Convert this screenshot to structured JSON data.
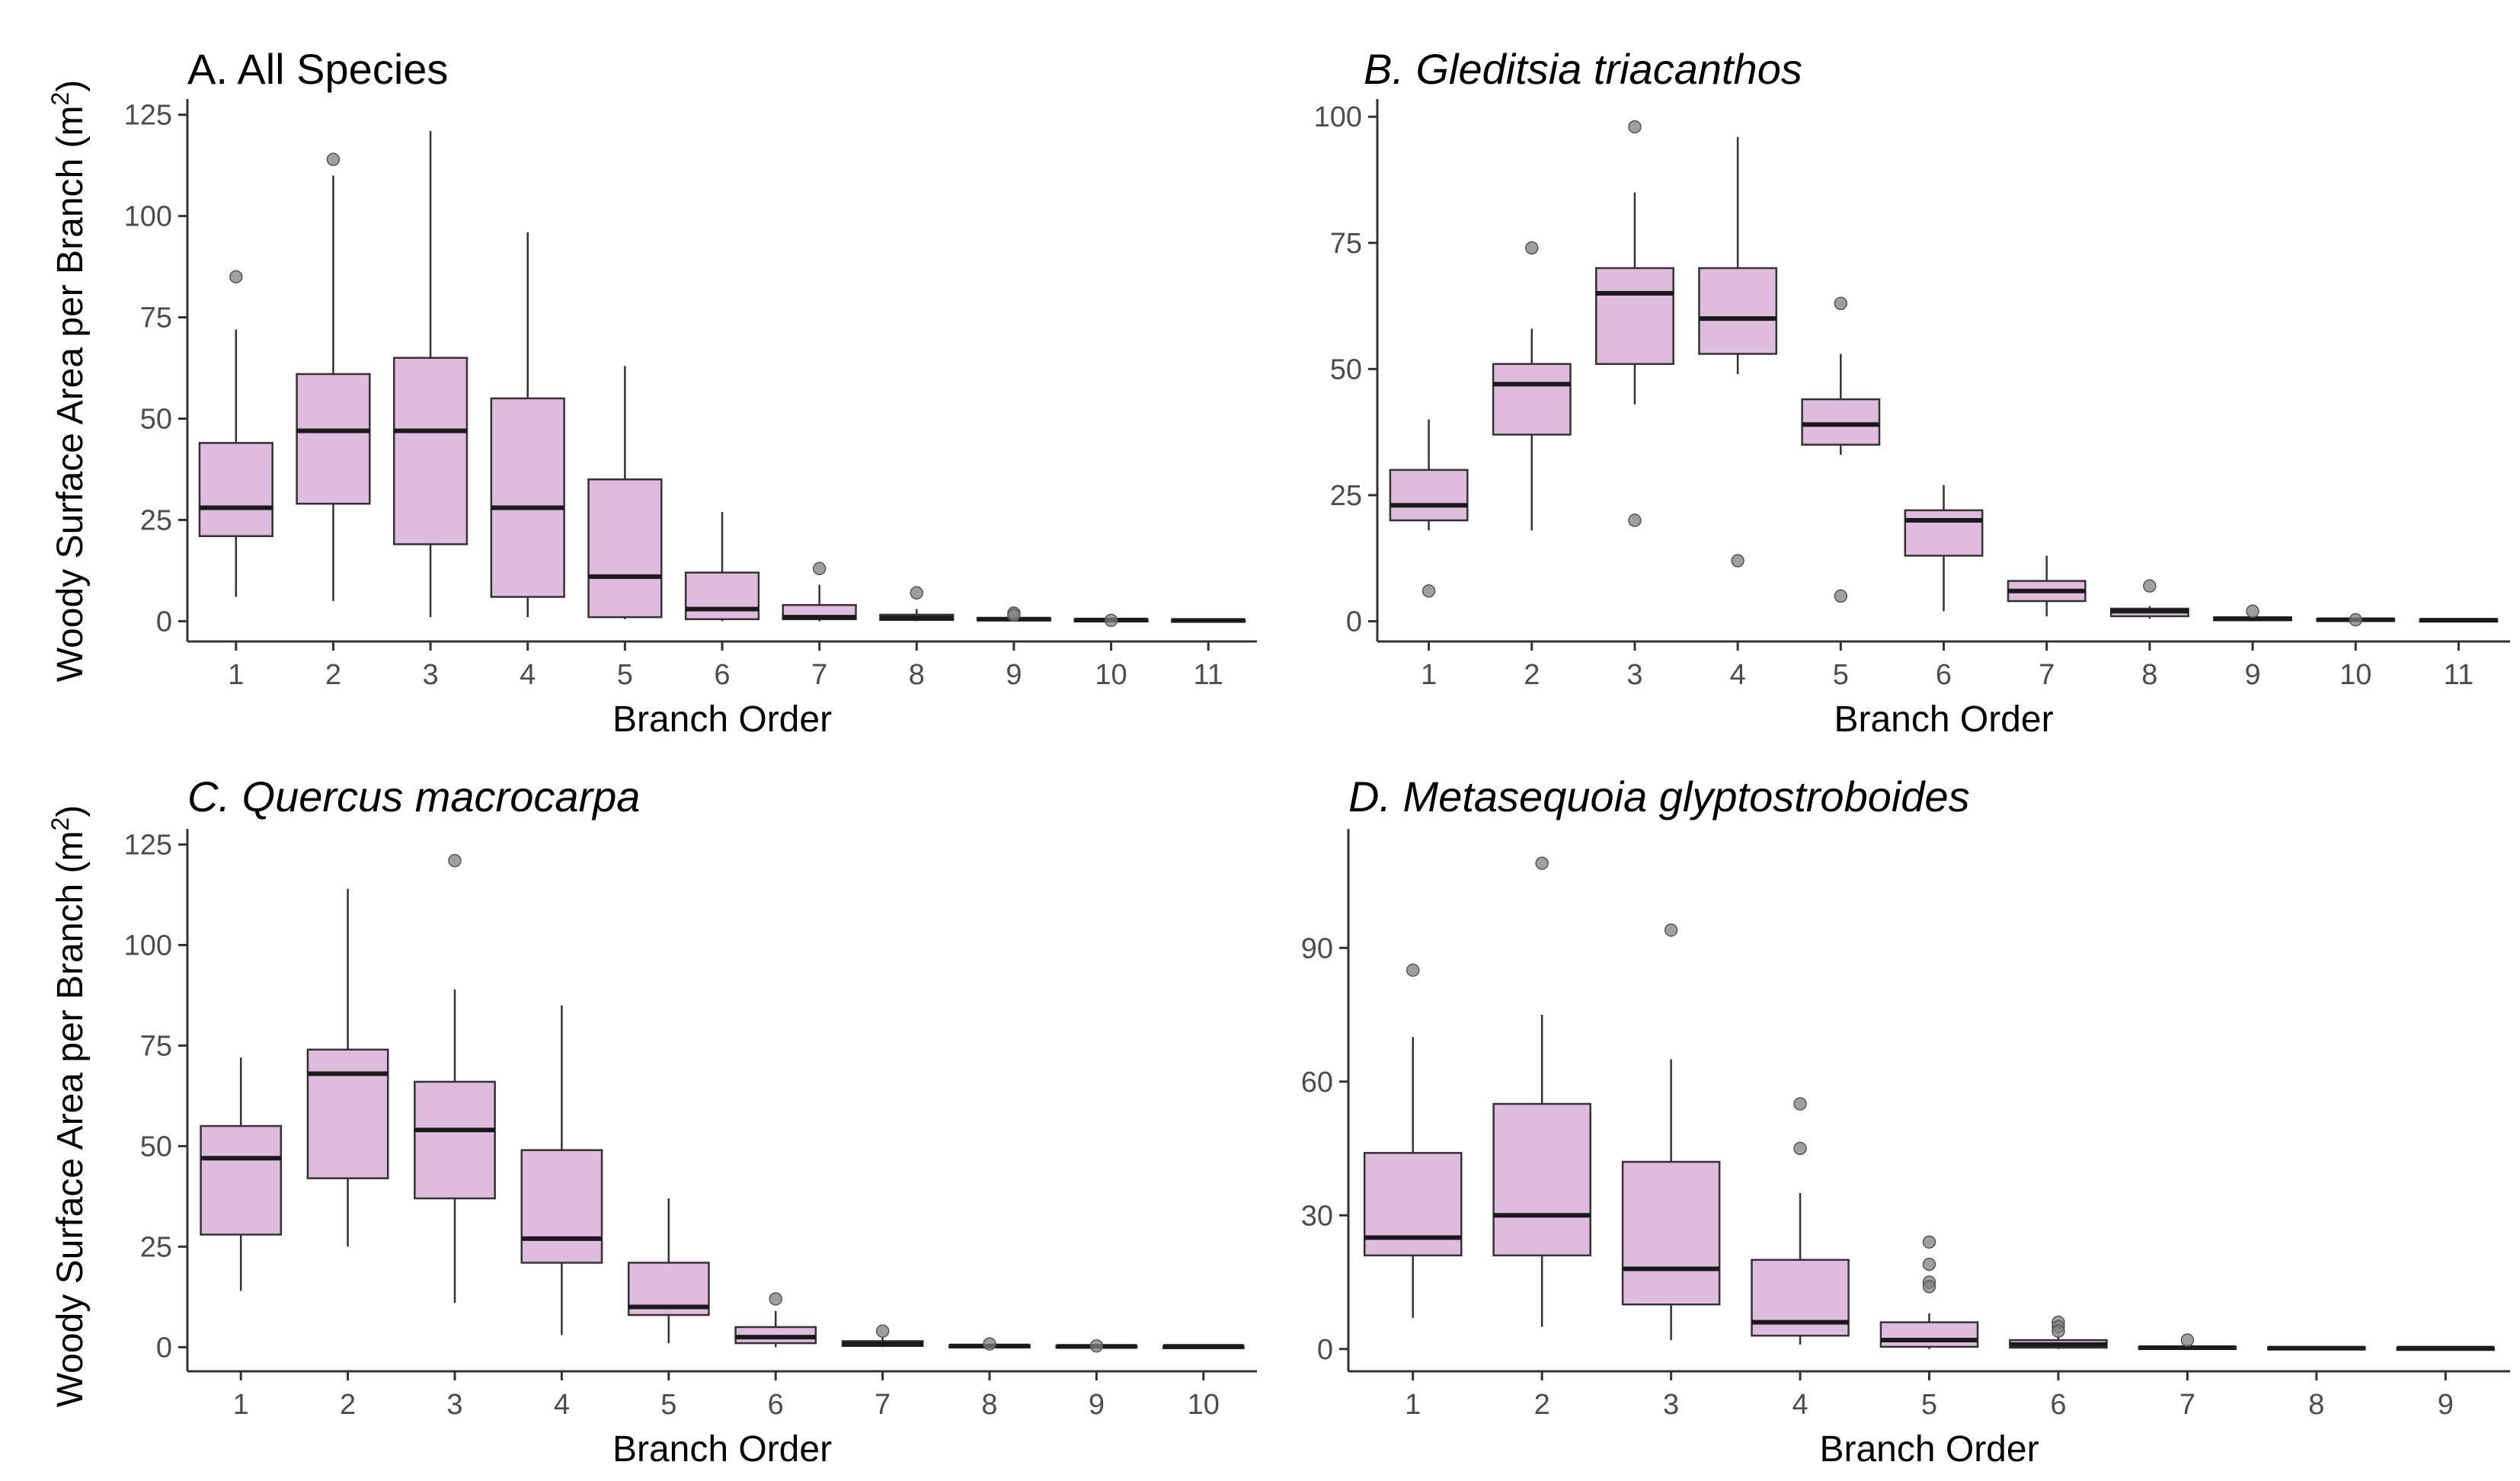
{
  "figure": {
    "ylabel_left": "Woody Surface Area per Branch (m",
    "ylabel_sup": "2",
    "ylabel_close": ")"
  },
  "colors": {
    "box_fill": "#dfbcdd",
    "box_stroke": "#333333",
    "median": "#1a1a1a",
    "outlier": "#7f7f7f",
    "axis": "#333333",
    "tick_text": "#4d4d4d"
  },
  "chart_data": [
    {
      "type": "boxplot",
      "panel": "A",
      "title": "A. All Species",
      "italic_title": false,
      "xlabel": "Branch Order",
      "ylabel": "Woody Surface Area per Branch (m2)",
      "ylim": [
        -5,
        127
      ],
      "yticks": [
        0,
        25,
        50,
        75,
        100,
        125
      ],
      "categories": [
        "1",
        "2",
        "3",
        "4",
        "5",
        "6",
        "7",
        "8",
        "9",
        "10",
        "11"
      ],
      "boxes": [
        {
          "low": 6,
          "q1": 21,
          "median": 28,
          "q3": 44,
          "high": 72,
          "outliers": [
            85
          ]
        },
        {
          "low": 5,
          "q1": 29,
          "median": 47,
          "q3": 61,
          "high": 110,
          "outliers": [
            114
          ]
        },
        {
          "low": 1,
          "q1": 19,
          "median": 47,
          "q3": 65,
          "high": 121,
          "outliers": []
        },
        {
          "low": 1,
          "q1": 6,
          "median": 28,
          "q3": 55,
          "high": 96,
          "outliers": []
        },
        {
          "low": 0.5,
          "q1": 1,
          "median": 11,
          "q3": 35,
          "high": 63,
          "outliers": []
        },
        {
          "low": 0,
          "q1": 0.5,
          "median": 3,
          "q3": 12,
          "high": 27,
          "outliers": []
        },
        {
          "low": 0,
          "q1": 0.5,
          "median": 1,
          "q3": 4,
          "high": 9,
          "outliers": [
            13
          ]
        },
        {
          "low": 0,
          "q1": 0.3,
          "median": 0.8,
          "q3": 1.6,
          "high": 3,
          "outliers": [
            7
          ]
        },
        {
          "low": 0,
          "q1": 0.2,
          "median": 0.5,
          "q3": 0.8,
          "high": 1,
          "outliers": [
            2,
            1.5
          ]
        },
        {
          "low": 0,
          "q1": 0.1,
          "median": 0.3,
          "q3": 0.5,
          "high": 0.8,
          "outliers": [
            0.2
          ]
        },
        {
          "low": 0,
          "q1": 0.1,
          "median": 0.2,
          "q3": 0.4,
          "high": 0.6,
          "outliers": []
        }
      ]
    },
    {
      "type": "boxplot",
      "panel": "B",
      "title": "B. Gleditsia triacanthos",
      "italic_title": true,
      "xlabel": "Branch Order",
      "ylabel": "",
      "ylim": [
        -4,
        102
      ],
      "yticks": [
        0,
        25,
        50,
        75,
        100
      ],
      "categories": [
        "1",
        "2",
        "3",
        "4",
        "5",
        "6",
        "7",
        "8",
        "9",
        "10",
        "11"
      ],
      "boxes": [
        {
          "low": 18,
          "q1": 20,
          "median": 23,
          "q3": 30,
          "high": 40,
          "outliers": [
            6
          ]
        },
        {
          "low": 18,
          "q1": 37,
          "median": 47,
          "q3": 51,
          "high": 58,
          "outliers": [
            74
          ]
        },
        {
          "low": 43,
          "q1": 51,
          "median": 65,
          "q3": 70,
          "high": 85,
          "outliers": [
            98,
            20
          ]
        },
        {
          "low": 49,
          "q1": 53,
          "median": 60,
          "q3": 70,
          "high": 96,
          "outliers": [
            12
          ]
        },
        {
          "low": 33,
          "q1": 35,
          "median": 39,
          "q3": 44,
          "high": 53,
          "outliers": [
            63,
            5
          ]
        },
        {
          "low": 2,
          "q1": 13,
          "median": 20,
          "q3": 22,
          "high": 27,
          "outliers": []
        },
        {
          "low": 1,
          "q1": 4,
          "median": 6,
          "q3": 8,
          "high": 13,
          "outliers": []
        },
        {
          "low": 0.5,
          "q1": 1,
          "median": 2,
          "q3": 2.5,
          "high": 3,
          "outliers": [
            7
          ]
        },
        {
          "low": 0,
          "q1": 0.2,
          "median": 0.5,
          "q3": 0.8,
          "high": 1,
          "outliers": [
            2
          ]
        },
        {
          "low": 0,
          "q1": 0.1,
          "median": 0.3,
          "q3": 0.5,
          "high": 0.8,
          "outliers": [
            0.3
          ]
        },
        {
          "low": 0,
          "q1": 0.1,
          "median": 0.2,
          "q3": 0.4,
          "high": 0.6,
          "outliers": []
        }
      ]
    },
    {
      "type": "boxplot",
      "panel": "C",
      "title": "C. Quercus macrocarpa",
      "italic_title": true,
      "xlabel": "Branch Order",
      "ylabel": "Woody Surface Area per Branch (m2)",
      "ylim": [
        -6,
        127
      ],
      "yticks": [
        0,
        25,
        50,
        75,
        100,
        125
      ],
      "categories": [
        "1",
        "2",
        "3",
        "4",
        "5",
        "6",
        "7",
        "8",
        "9",
        "10"
      ],
      "boxes": [
        {
          "low": 14,
          "q1": 28,
          "median": 47,
          "q3": 55,
          "high": 72,
          "outliers": []
        },
        {
          "low": 25,
          "q1": 42,
          "median": 68,
          "q3": 74,
          "high": 114,
          "outliers": []
        },
        {
          "low": 11,
          "q1": 37,
          "median": 54,
          "q3": 66,
          "high": 89,
          "outliers": [
            121
          ]
        },
        {
          "low": 3,
          "q1": 21,
          "median": 27,
          "q3": 49,
          "high": 85,
          "outliers": []
        },
        {
          "low": 1,
          "q1": 8,
          "median": 10,
          "q3": 21,
          "high": 37,
          "outliers": []
        },
        {
          "low": 0,
          "q1": 1,
          "median": 2.5,
          "q3": 5,
          "high": 9,
          "outliers": [
            12
          ]
        },
        {
          "low": 0,
          "q1": 0.3,
          "median": 0.8,
          "q3": 1.5,
          "high": 2.5,
          "outliers": [
            4
          ]
        },
        {
          "low": 0,
          "q1": 0.1,
          "median": 0.3,
          "q3": 0.5,
          "high": 0.8,
          "outliers": [
            0.8
          ]
        },
        {
          "low": 0,
          "q1": 0.1,
          "median": 0.2,
          "q3": 0.4,
          "high": 0.5,
          "outliers": [
            0.3
          ]
        },
        {
          "low": 0,
          "q1": 0.1,
          "median": 0.2,
          "q3": 0.3,
          "high": 0.5,
          "outliers": []
        }
      ]
    },
    {
      "type": "boxplot",
      "panel": "D",
      "title": "D. Metasequoia glyptostroboides",
      "italic_title": true,
      "xlabel": "Branch Order",
      "ylabel": "",
      "ylim": [
        -5,
        115
      ],
      "yticks": [
        0,
        30,
        60,
        90
      ],
      "categories": [
        "1",
        "2",
        "3",
        "4",
        "5",
        "6",
        "7",
        "8",
        "9"
      ],
      "boxes": [
        {
          "low": 7,
          "q1": 21,
          "median": 25,
          "q3": 44,
          "high": 70,
          "outliers": [
            85
          ]
        },
        {
          "low": 5,
          "q1": 21,
          "median": 30,
          "q3": 55,
          "high": 75,
          "outliers": [
            109
          ]
        },
        {
          "low": 2,
          "q1": 10,
          "median": 18,
          "q3": 42,
          "high": 65,
          "outliers": [
            94
          ]
        },
        {
          "low": 1,
          "q1": 3,
          "median": 6,
          "q3": 20,
          "high": 35,
          "outliers": [
            55,
            45
          ]
        },
        {
          "low": 0,
          "q1": 0.5,
          "median": 2,
          "q3": 6,
          "high": 8,
          "outliers": [
            24,
            19,
            15,
            14
          ]
        },
        {
          "low": 0,
          "q1": 0.3,
          "median": 1,
          "q3": 2,
          "high": 3,
          "outliers": [
            6,
            5,
            4
          ]
        },
        {
          "low": 0,
          "q1": 0.1,
          "median": 0.3,
          "q3": 0.5,
          "high": 1,
          "outliers": [
            2
          ]
        },
        {
          "low": 0,
          "q1": 0.1,
          "median": 0.2,
          "q3": 0.4,
          "high": 0.5,
          "outliers": []
        },
        {
          "low": 0,
          "q1": 0.1,
          "median": 0.2,
          "q3": 0.3,
          "high": 0.4,
          "outliers": []
        }
      ]
    }
  ]
}
